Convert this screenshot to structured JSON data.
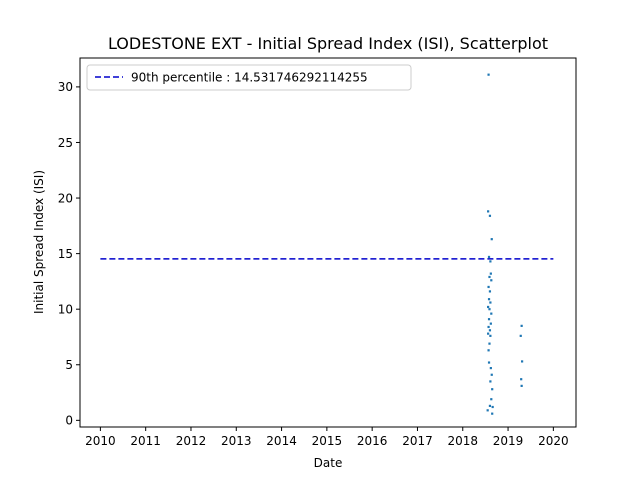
{
  "chart_data": {
    "type": "scatter",
    "title": "LODESTONE EXT - Initial Spread Index (ISI), Scatterplot",
    "xlabel": "Date",
    "ylabel": "Initial Spread Index (ISI)",
    "xlim": [
      2009.55,
      2020.5
    ],
    "ylim": [
      -0.6,
      32.6
    ],
    "xticks": [
      "2010",
      "2011",
      "2012",
      "2013",
      "2014",
      "2015",
      "2016",
      "2017",
      "2018",
      "2019",
      "2020"
    ],
    "yticks": [
      0,
      5,
      10,
      15,
      20,
      25,
      30
    ],
    "grid": false,
    "legend_position": "top-left",
    "point_color": "#1f77b4",
    "threshold": {
      "label": "90th percentile : 14.531746292114255",
      "value": 14.531746292114255,
      "x_range": [
        2010.0,
        2020.0
      ],
      "color": "#0000cc",
      "style": "dashed"
    },
    "points": [
      {
        "x": 2018.57,
        "y": 31.1
      },
      {
        "x": 2018.56,
        "y": 18.8
      },
      {
        "x": 2018.6,
        "y": 18.4
      },
      {
        "x": 2018.64,
        "y": 16.3
      },
      {
        "x": 2018.58,
        "y": 14.7
      },
      {
        "x": 2018.61,
        "y": 14.3
      },
      {
        "x": 2018.62,
        "y": 13.2
      },
      {
        "x": 2018.59,
        "y": 12.9
      },
      {
        "x": 2018.63,
        "y": 12.6
      },
      {
        "x": 2018.57,
        "y": 12.0
      },
      {
        "x": 2018.6,
        "y": 11.6
      },
      {
        "x": 2018.58,
        "y": 10.9
      },
      {
        "x": 2018.61,
        "y": 10.6
      },
      {
        "x": 2018.56,
        "y": 10.2
      },
      {
        "x": 2018.59,
        "y": 10.0
      },
      {
        "x": 2018.63,
        "y": 9.6
      },
      {
        "x": 2018.58,
        "y": 9.1
      },
      {
        "x": 2018.62,
        "y": 8.7
      },
      {
        "x": 2018.57,
        "y": 8.4
      },
      {
        "x": 2018.6,
        "y": 8.1
      },
      {
        "x": 2018.56,
        "y": 7.8
      },
      {
        "x": 2018.61,
        "y": 7.6
      },
      {
        "x": 2018.59,
        "y": 6.9
      },
      {
        "x": 2018.57,
        "y": 6.3
      },
      {
        "x": 2018.58,
        "y": 5.2
      },
      {
        "x": 2018.62,
        "y": 4.7
      },
      {
        "x": 2018.64,
        "y": 4.1
      },
      {
        "x": 2018.61,
        "y": 3.5
      },
      {
        "x": 2018.65,
        "y": 2.8
      },
      {
        "x": 2018.63,
        "y": 1.9
      },
      {
        "x": 2018.6,
        "y": 1.3
      },
      {
        "x": 2018.66,
        "y": 1.2
      },
      {
        "x": 2018.55,
        "y": 0.9
      },
      {
        "x": 2018.65,
        "y": 0.6
      },
      {
        "x": 2019.3,
        "y": 8.5
      },
      {
        "x": 2019.28,
        "y": 7.6
      },
      {
        "x": 2019.31,
        "y": 5.3
      },
      {
        "x": 2019.29,
        "y": 3.7
      },
      {
        "x": 2019.3,
        "y": 3.1
      }
    ]
  }
}
